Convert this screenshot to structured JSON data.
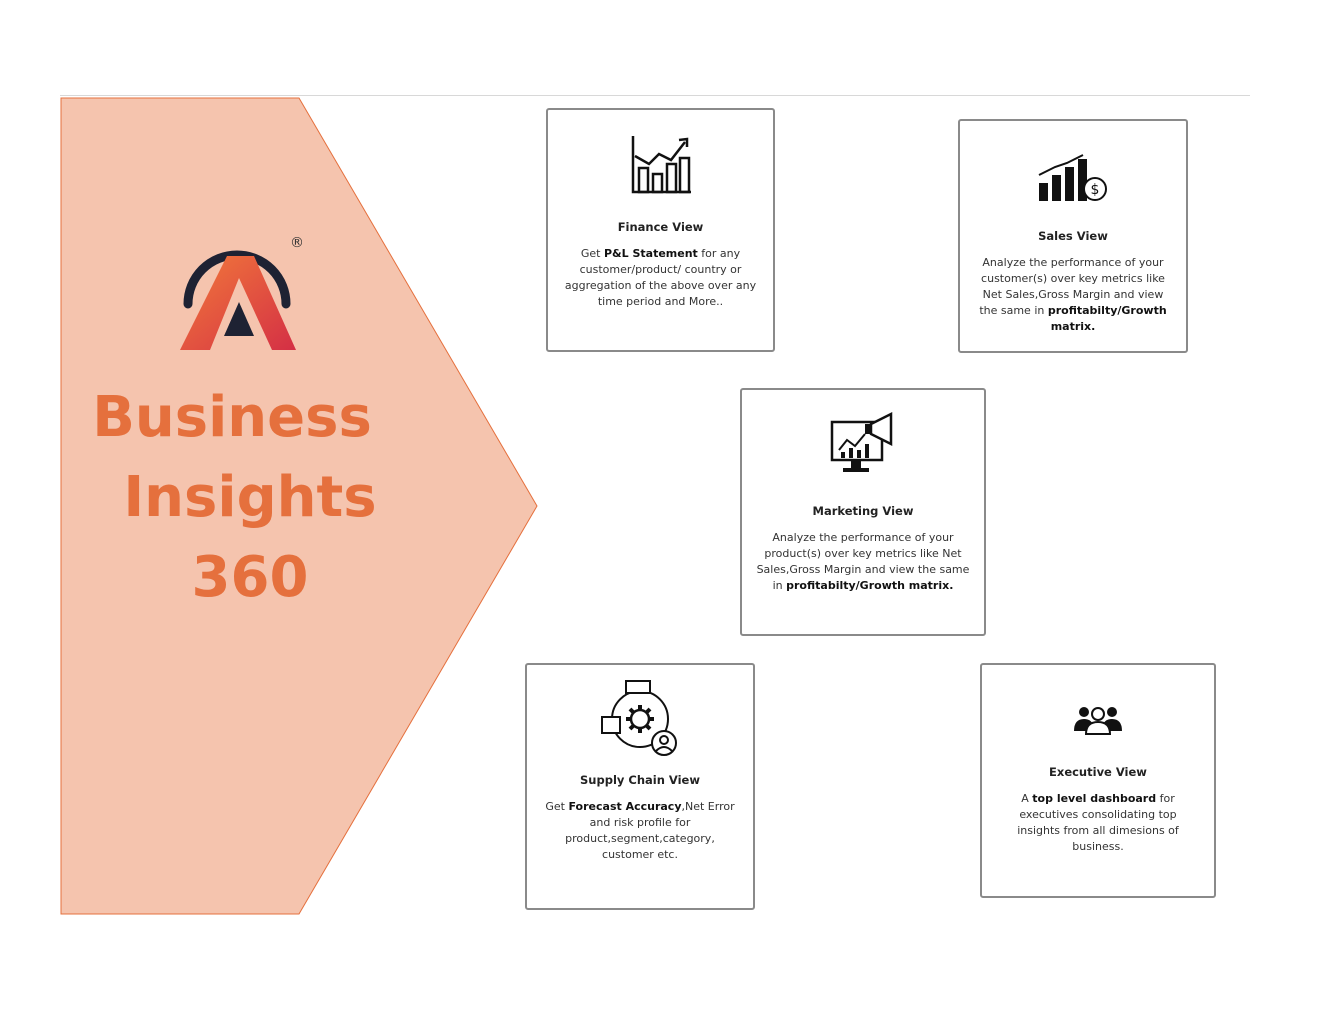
{
  "brand": {
    "registered_mark": "®",
    "title_lines": [
      "Business",
      "Insights",
      "360"
    ],
    "accent_color": "#e5703d",
    "panel_color": "#f5c4ae"
  },
  "cards": [
    {
      "id": "finance",
      "icon": "line-chart-icon",
      "heading": "Finance View",
      "desc_pre": "Get ",
      "desc_bold": "P&L Statement",
      "desc_post": " for any customer/product/ country or aggregation of the above over any time period and More.."
    },
    {
      "id": "sales",
      "icon": "bar-chart-dollar-icon",
      "heading": "Sales View",
      "desc_pre": "Analyze the performance of your customer(s) over key metrics like Net Sales,Gross Margin and view the same in ",
      "desc_bold": "profitabilty/Growth matrix.",
      "desc_post": ""
    },
    {
      "id": "marketing",
      "icon": "monitor-megaphone-icon",
      "heading": "Marketing  View",
      "desc_pre": "Analyze the performance of your product(s) over key metrics like Net Sales,Gross Margin and view the same in ",
      "desc_bold": "profitabilty/Growth matrix.",
      "desc_post": ""
    },
    {
      "id": "supply",
      "icon": "supply-chain-gear-icon",
      "heading": "Supply Chain  View",
      "desc_pre": "Get ",
      "desc_bold": "Forecast Accuracy",
      "desc_post": ",Net Error and risk profile for product,segment,category, customer etc."
    },
    {
      "id": "executive",
      "icon": "people-group-icon",
      "heading": "Executive  View",
      "desc_pre": "A ",
      "desc_bold": "top level dashboard",
      "desc_post": " for executives consolidating top insights from all dimesions of business."
    }
  ]
}
